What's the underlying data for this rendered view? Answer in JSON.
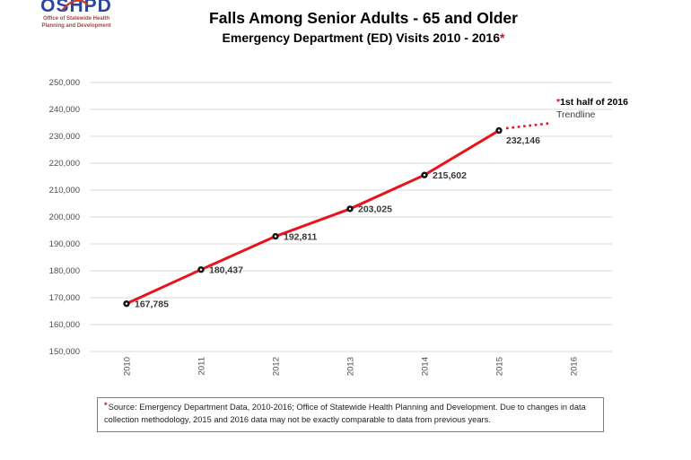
{
  "logo": {
    "acronym": "OSHPD",
    "line1": "Office of Statewide Health",
    "line2": "Planning and Development"
  },
  "header": {
    "title": "Falls Among Senior Adults - 65 and Older",
    "subtitle": "Emergency Department (ED) Visits 2010 - 2016",
    "subtitle_asterisk": "*"
  },
  "chart_data": {
    "type": "line",
    "title": "Falls Among Senior Adults - 65 and Older",
    "subtitle": "Emergency Department (ED) Visits 2010 - 2016*",
    "x": [
      2010,
      2011,
      2012,
      2013,
      2014,
      2015
    ],
    "values": [
      167785,
      180437,
      192811,
      203025,
      215602,
      232146
    ],
    "data_labels": [
      "167,785",
      "180,437",
      "192,811",
      "203,025",
      "215,602",
      "232,146"
    ],
    "x_ticks": [
      "2010",
      "2011",
      "2012",
      "2013",
      "2014",
      "2015",
      "2016"
    ],
    "ylim": [
      150000,
      250000
    ],
    "y_tick_step": 10000,
    "grid": true,
    "legend_position": "none",
    "series_color": "#E8131D",
    "marker_color": "#141414",
    "gridline_color": "#D9D9D9",
    "trendline": {
      "style": "dotted",
      "covers": "1st half of 2016 projection",
      "label_asterisk": "*",
      "label_bold": "1st half of 2016",
      "label_line2": "Trendline"
    }
  },
  "footnote": {
    "asterisk": "*",
    "text": "Source: Emergency Department Data, 2010-2016; Office of Statewide Health Planning and Development. Due to changes in data collection methodology, 2015 and 2016 data may not be exactly comparable to data from previous years."
  }
}
